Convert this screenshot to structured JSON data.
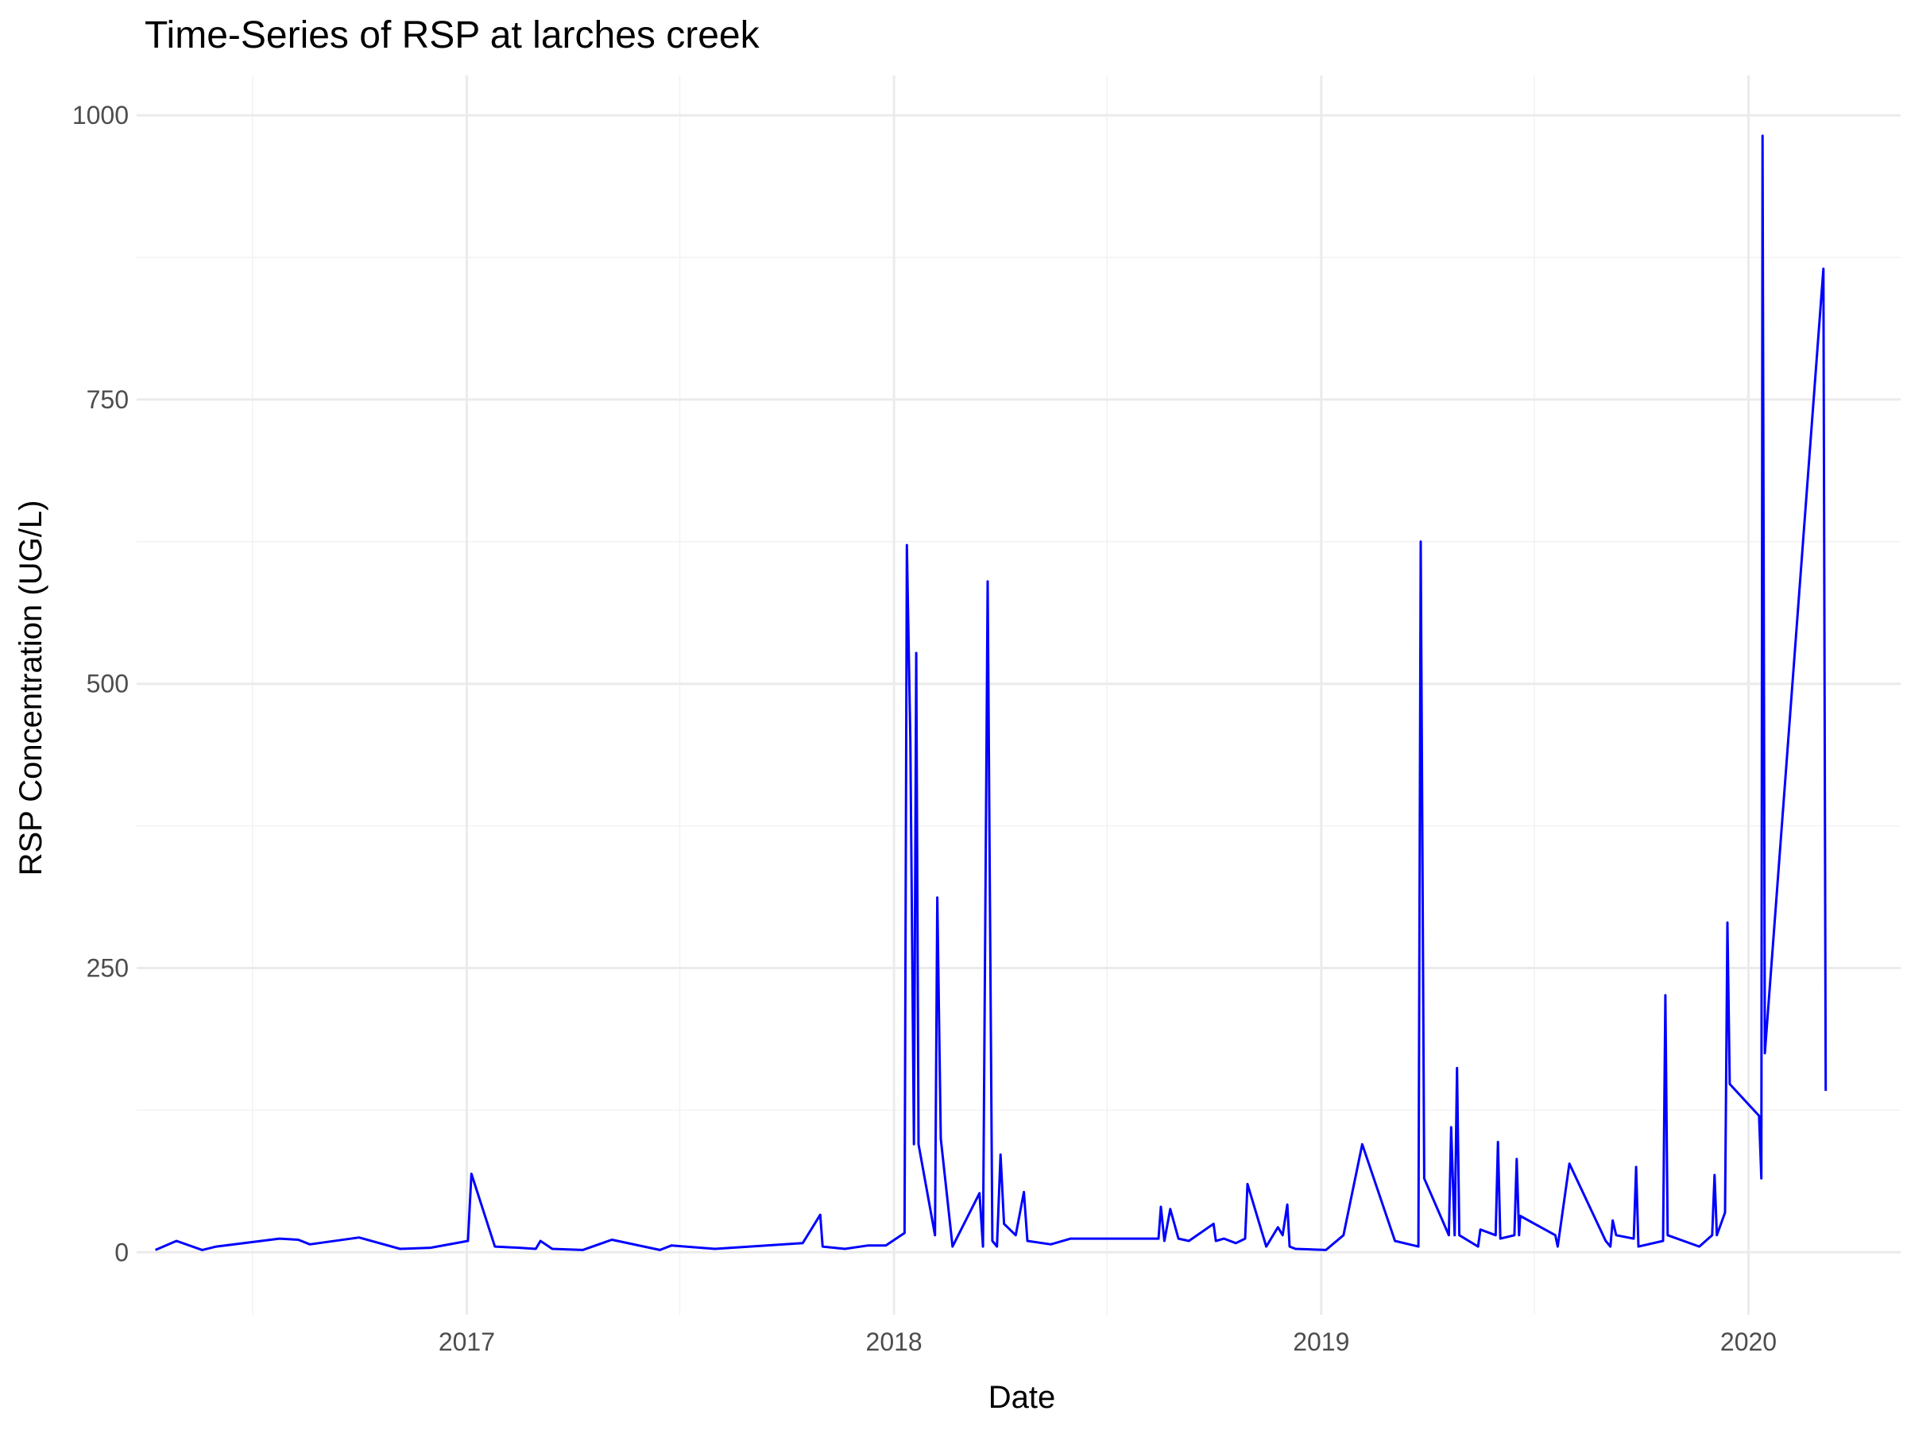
{
  "chart_data": {
    "type": "line",
    "title": "Time-Series of RSP at larches creek",
    "xlabel": "Date",
    "ylabel": "RSP Concentration (UG/L)",
    "x_ticks": [
      "2017",
      "2018",
      "2019",
      "2020"
    ],
    "y_ticks": [
      0,
      250,
      500,
      750,
      1000
    ],
    "xlim": [
      "2016-03-25",
      "2020-05-10"
    ],
    "ylim": [
      -55,
      1035
    ],
    "grid": true,
    "legend": "none",
    "series": [
      {
        "color": "#0000ff",
        "points": [
          [
            "2016-04-10",
            2
          ],
          [
            "2016-04-28",
            10
          ],
          [
            "2016-05-20",
            2
          ],
          [
            "2016-06-01",
            5
          ],
          [
            "2016-07-25",
            12
          ],
          [
            "2016-08-10",
            11
          ],
          [
            "2016-08-20",
            7
          ],
          [
            "2016-10-01",
            13
          ],
          [
            "2016-11-05",
            3
          ],
          [
            "2016-12-01",
            4
          ],
          [
            "2017-01-02",
            10
          ],
          [
            "2017-01-05",
            69
          ],
          [
            "2017-01-25",
            5
          ],
          [
            "2017-02-15",
            4
          ],
          [
            "2017-03-01",
            3
          ],
          [
            "2017-03-05",
            10
          ],
          [
            "2017-03-15",
            3
          ],
          [
            "2017-04-10",
            2
          ],
          [
            "2017-05-05",
            11
          ],
          [
            "2017-06-15",
            2
          ],
          [
            "2017-06-25",
            6
          ],
          [
            "2017-08-01",
            3
          ],
          [
            "2017-10-15",
            8
          ],
          [
            "2017-10-30",
            33
          ],
          [
            "2017-11-01",
            5
          ],
          [
            "2017-11-20",
            3
          ],
          [
            "2017-12-10",
            6
          ],
          [
            "2017-12-25",
            6
          ],
          [
            "2018-01-10",
            17
          ],
          [
            "2018-01-12",
            622
          ],
          [
            "2018-01-15",
            450
          ],
          [
            "2018-01-18",
            95
          ],
          [
            "2018-01-20",
            527
          ],
          [
            "2018-01-22",
            95
          ],
          [
            "2018-02-05",
            15
          ],
          [
            "2018-02-07",
            312
          ],
          [
            "2018-02-10",
            100
          ],
          [
            "2018-02-20",
            5
          ],
          [
            "2018-03-15",
            52
          ],
          [
            "2018-03-18",
            5
          ],
          [
            "2018-03-22",
            590
          ],
          [
            "2018-03-26",
            10
          ],
          [
            "2018-03-30",
            5
          ],
          [
            "2018-04-02",
            86
          ],
          [
            "2018-04-05",
            25
          ],
          [
            "2018-04-15",
            15
          ],
          [
            "2018-04-22",
            53
          ],
          [
            "2018-04-25",
            10
          ],
          [
            "2018-05-15",
            7
          ],
          [
            "2018-06-01",
            12
          ],
          [
            "2018-08-15",
            12
          ],
          [
            "2018-08-17",
            40
          ],
          [
            "2018-08-20",
            10
          ],
          [
            "2018-08-25",
            38
          ],
          [
            "2018-09-01",
            12
          ],
          [
            "2018-09-10",
            10
          ],
          [
            "2018-10-01",
            25
          ],
          [
            "2018-10-03",
            10
          ],
          [
            "2018-10-10",
            12
          ],
          [
            "2018-10-20",
            8
          ],
          [
            "2018-10-28",
            12
          ],
          [
            "2018-10-30",
            60
          ],
          [
            "2018-11-15",
            5
          ],
          [
            "2018-11-25",
            22
          ],
          [
            "2018-11-29",
            15
          ],
          [
            "2018-12-03",
            42
          ],
          [
            "2018-12-05",
            5
          ],
          [
            "2018-12-10",
            3
          ],
          [
            "2019-01-05",
            2
          ],
          [
            "2019-01-20",
            15
          ],
          [
            "2019-02-05",
            95
          ],
          [
            "2019-03-05",
            10
          ],
          [
            "2019-03-25",
            5
          ],
          [
            "2019-03-27",
            625
          ],
          [
            "2019-03-30",
            65
          ],
          [
            "2019-04-20",
            15
          ],
          [
            "2019-04-22",
            110
          ],
          [
            "2019-04-25",
            15
          ],
          [
            "2019-04-27",
            162
          ],
          [
            "2019-04-29",
            15
          ],
          [
            "2019-05-15",
            5
          ],
          [
            "2019-05-17",
            20
          ],
          [
            "2019-05-30",
            15
          ],
          [
            "2019-06-01",
            97
          ],
          [
            "2019-06-03",
            12
          ],
          [
            "2019-06-15",
            15
          ],
          [
            "2019-06-17",
            82
          ],
          [
            "2019-06-19",
            15
          ],
          [
            "2019-06-20",
            32
          ],
          [
            "2019-07-20",
            15
          ],
          [
            "2019-07-22",
            5
          ],
          [
            "2019-08-01",
            78
          ],
          [
            "2019-09-01",
            10
          ],
          [
            "2019-09-05",
            5
          ],
          [
            "2019-09-07",
            28
          ],
          [
            "2019-09-10",
            15
          ],
          [
            "2019-09-25",
            12
          ],
          [
            "2019-09-27",
            75
          ],
          [
            "2019-09-29",
            5
          ],
          [
            "2019-10-20",
            10
          ],
          [
            "2019-10-22",
            226
          ],
          [
            "2019-10-24",
            15
          ],
          [
            "2019-11-20",
            5
          ],
          [
            "2019-12-01",
            15
          ],
          [
            "2019-12-03",
            68
          ],
          [
            "2019-12-05",
            15
          ],
          [
            "2019-12-12",
            35
          ],
          [
            "2019-12-14",
            290
          ],
          [
            "2019-12-16",
            148
          ],
          [
            "2020-01-10",
            120
          ],
          [
            "2020-01-12",
            65
          ],
          [
            "2020-01-13",
            982
          ],
          [
            "2020-01-14",
            610
          ],
          [
            "2020-01-15",
            175
          ],
          [
            "2020-03-05",
            865
          ],
          [
            "2020-03-07",
            142
          ]
        ]
      }
    ]
  }
}
